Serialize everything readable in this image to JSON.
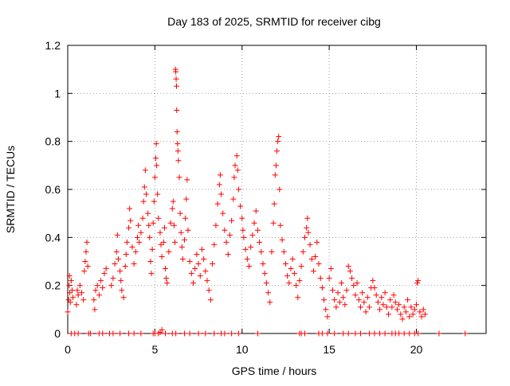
{
  "chart_data": {
    "type": "scatter",
    "title": "Day 183 of 2025, SRMTID for receiver cibg",
    "xlabel": "GPS time / hours",
    "ylabel": "SRMTID / TECUs",
    "xlim": [
      0,
      24
    ],
    "ylim": [
      0,
      1.2
    ],
    "xticks": [
      "0",
      "5",
      "10",
      "15",
      "20"
    ],
    "yticks": [
      "0",
      "0.2",
      "0.4",
      "0.6",
      "0.8",
      "1",
      "1.2"
    ],
    "grid": true,
    "marker": "+",
    "series_color": "#ff0000",
    "series": [
      {
        "name": "SRMTID",
        "points": [
          [
            0.0,
            0.09
          ],
          [
            0.05,
            0.14
          ],
          [
            0.08,
            0.2
          ],
          [
            0.1,
            0.24
          ],
          [
            0.12,
            0.17
          ],
          [
            0.15,
            0.13
          ],
          [
            0.2,
            0.22
          ],
          [
            0.25,
            0.18
          ],
          [
            0.3,
            0.15
          ],
          [
            0.5,
            0.12
          ],
          [
            0.55,
            0.18
          ],
          [
            0.6,
            0.16
          ],
          [
            0.7,
            0.2
          ],
          [
            0.8,
            0.17
          ],
          [
            0.9,
            0.14
          ],
          [
            0.95,
            0.26
          ],
          [
            1.0,
            0.3
          ],
          [
            1.05,
            0.34
          ],
          [
            1.1,
            0.38
          ],
          [
            1.15,
            0.28
          ],
          [
            1.5,
            0.14
          ],
          [
            1.55,
            0.1
          ],
          [
            1.6,
            0.18
          ],
          [
            1.7,
            0.2
          ],
          [
            1.8,
            0.16
          ],
          [
            1.9,
            0.22
          ],
          [
            2.0,
            0.19
          ],
          [
            2.1,
            0.25
          ],
          [
            2.2,
            0.27
          ],
          [
            2.5,
            0.2
          ],
          [
            2.6,
            0.23
          ],
          [
            2.7,
            0.29
          ],
          [
            2.8,
            0.34
          ],
          [
            2.85,
            0.41
          ],
          [
            2.9,
            0.31
          ],
          [
            3.0,
            0.26
          ],
          [
            3.05,
            0.22
          ],
          [
            3.1,
            0.18
          ],
          [
            3.2,
            0.15
          ],
          [
            3.3,
            0.28
          ],
          [
            3.35,
            0.33
          ],
          [
            3.4,
            0.38
          ],
          [
            3.5,
            0.44
          ],
          [
            3.55,
            0.52
          ],
          [
            3.6,
            0.47
          ],
          [
            3.7,
            0.36
          ],
          [
            3.8,
            0.29
          ],
          [
            3.9,
            0.34
          ],
          [
            4.0,
            0.4
          ],
          [
            4.05,
            0.45
          ],
          [
            4.1,
            0.38
          ],
          [
            4.2,
            0.42
          ],
          [
            4.3,
            0.48
          ],
          [
            4.35,
            0.55
          ],
          [
            4.4,
            0.61
          ],
          [
            4.45,
            0.68
          ],
          [
            4.5,
            0.58
          ],
          [
            4.6,
            0.5
          ],
          [
            4.65,
            0.45
          ],
          [
            4.7,
            0.4
          ],
          [
            4.75,
            0.3
          ],
          [
            4.8,
            0.25
          ],
          [
            4.85,
            0.35
          ],
          [
            4.9,
            0.46
          ],
          [
            4.95,
            0.55
          ],
          [
            5.0,
            0.65
          ],
          [
            5.05,
            0.73
          ],
          [
            5.08,
            0.79
          ],
          [
            5.1,
            0.7
          ],
          [
            5.15,
            0.58
          ],
          [
            5.2,
            0.48
          ],
          [
            5.3,
            0.42
          ],
          [
            5.35,
            0.37
          ],
          [
            5.4,
            0.32
          ],
          [
            5.5,
            0.38
          ],
          [
            5.55,
            0.44
          ],
          [
            5.6,
            0.27
          ],
          [
            5.65,
            0.23
          ],
          [
            5.7,
            0.21
          ],
          [
            5.8,
            0.34
          ],
          [
            5.9,
            0.46
          ],
          [
            6.0,
            0.52
          ],
          [
            6.05,
            0.55
          ],
          [
            6.1,
            0.45
          ],
          [
            6.15,
            0.38
          ],
          [
            6.18,
            1.1
          ],
          [
            6.2,
            1.09
          ],
          [
            6.22,
            1.06
          ],
          [
            6.24,
            1.03
          ],
          [
            6.25,
            0.93
          ],
          [
            6.27,
            0.84
          ],
          [
            6.3,
            0.79
          ],
          [
            6.32,
            0.76
          ],
          [
            6.35,
            0.72
          ],
          [
            6.4,
            0.65
          ],
          [
            6.45,
            0.5
          ],
          [
            6.5,
            0.42
          ],
          [
            6.55,
            0.36
          ],
          [
            6.6,
            0.31
          ],
          [
            6.7,
            0.39
          ],
          [
            6.75,
            0.48
          ],
          [
            6.8,
            0.56
          ],
          [
            6.85,
            0.64
          ],
          [
            6.9,
            0.43
          ],
          [
            7.0,
            0.3
          ],
          [
            7.1,
            0.25
          ],
          [
            7.2,
            0.21
          ],
          [
            7.3,
            0.27
          ],
          [
            7.4,
            0.33
          ],
          [
            7.5,
            0.29
          ],
          [
            7.6,
            0.24
          ],
          [
            7.7,
            0.35
          ],
          [
            7.8,
            0.31
          ],
          [
            7.9,
            0.26
          ],
          [
            8.0,
            0.22
          ],
          [
            8.1,
            0.18
          ],
          [
            8.2,
            0.14
          ],
          [
            8.3,
            0.29
          ],
          [
            8.4,
            0.37
          ],
          [
            8.5,
            0.45
          ],
          [
            8.6,
            0.54
          ],
          [
            8.7,
            0.62
          ],
          [
            8.75,
            0.66
          ],
          [
            8.8,
            0.58
          ],
          [
            8.9,
            0.5
          ],
          [
            9.0,
            0.43
          ],
          [
            9.1,
            0.38
          ],
          [
            9.2,
            0.33
          ],
          [
            9.3,
            0.41
          ],
          [
            9.4,
            0.47
          ],
          [
            9.5,
            0.56
          ],
          [
            9.55,
            0.65
          ],
          [
            9.6,
            0.7
          ],
          [
            9.7,
            0.74
          ],
          [
            9.75,
            0.68
          ],
          [
            9.8,
            0.6
          ],
          [
            9.9,
            0.53
          ],
          [
            10.0,
            0.48
          ],
          [
            10.05,
            0.43
          ],
          [
            10.1,
            0.4
          ],
          [
            10.2,
            0.35
          ],
          [
            10.3,
            0.31
          ],
          [
            10.4,
            0.28
          ],
          [
            10.5,
            0.36
          ],
          [
            10.6,
            0.41
          ],
          [
            10.7,
            0.46
          ],
          [
            10.8,
            0.51
          ],
          [
            10.9,
            0.43
          ],
          [
            11.0,
            0.38
          ],
          [
            11.1,
            0.34
          ],
          [
            11.2,
            0.29
          ],
          [
            11.3,
            0.25
          ],
          [
            11.4,
            0.21
          ],
          [
            11.5,
            0.17
          ],
          [
            11.6,
            0.13
          ],
          [
            11.7,
            0.34
          ],
          [
            11.8,
            0.46
          ],
          [
            11.85,
            0.54
          ],
          [
            11.9,
            0.66
          ],
          [
            11.95,
            0.7
          ],
          [
            12.0,
            0.76
          ],
          [
            12.05,
            0.8
          ],
          [
            12.1,
            0.82
          ],
          [
            12.15,
            0.6
          ],
          [
            12.2,
            0.45
          ],
          [
            12.3,
            0.39
          ],
          [
            12.4,
            0.34
          ],
          [
            12.5,
            0.29
          ],
          [
            12.6,
            0.24
          ],
          [
            12.7,
            0.21
          ],
          [
            12.8,
            0.27
          ],
          [
            12.9,
            0.31
          ],
          [
            13.0,
            0.25
          ],
          [
            13.1,
            0.2
          ],
          [
            13.2,
            0.15
          ],
          [
            13.3,
            0.22
          ],
          [
            13.4,
            0.28
          ],
          [
            13.5,
            0.34
          ],
          [
            13.6,
            0.4
          ],
          [
            13.7,
            0.44
          ],
          [
            13.75,
            0.48
          ],
          [
            13.8,
            0.42
          ],
          [
            13.9,
            0.37
          ],
          [
            14.0,
            0.31
          ],
          [
            14.1,
            0.26
          ],
          [
            14.2,
            0.32
          ],
          [
            14.3,
            0.38
          ],
          [
            14.4,
            0.29
          ],
          [
            14.5,
            0.23
          ],
          [
            14.6,
            0.19
          ],
          [
            14.7,
            0.14
          ],
          [
            14.8,
            0.1
          ],
          [
            14.9,
            0.07
          ],
          [
            15.0,
            0.23
          ],
          [
            15.1,
            0.27
          ],
          [
            15.2,
            0.18
          ],
          [
            15.3,
            0.14
          ],
          [
            15.4,
            0.11
          ],
          [
            15.5,
            0.17
          ],
          [
            15.6,
            0.13
          ],
          [
            15.7,
            0.21
          ],
          [
            15.8,
            0.15
          ],
          [
            15.9,
            0.12
          ],
          [
            16.0,
            0.18
          ],
          [
            16.1,
            0.28
          ],
          [
            16.2,
            0.26
          ],
          [
            16.3,
            0.23
          ],
          [
            16.4,
            0.2
          ],
          [
            16.5,
            0.16
          ],
          [
            16.6,
            0.21
          ],
          [
            16.7,
            0.14
          ],
          [
            16.8,
            0.11
          ],
          [
            16.9,
            0.17
          ],
          [
            17.0,
            0.13
          ],
          [
            17.1,
            0.09
          ],
          [
            17.2,
            0.15
          ],
          [
            17.3,
            0.11
          ],
          [
            17.4,
            0.19
          ],
          [
            17.5,
            0.22
          ],
          [
            17.6,
            0.19
          ],
          [
            17.7,
            0.16
          ],
          [
            17.8,
            0.13
          ],
          [
            17.9,
            0.1
          ],
          [
            18.0,
            0.15
          ],
          [
            18.1,
            0.12
          ],
          [
            18.2,
            0.17
          ],
          [
            18.3,
            0.11
          ],
          [
            18.4,
            0.08
          ],
          [
            18.5,
            0.14
          ],
          [
            18.6,
            0.11
          ],
          [
            18.7,
            0.16
          ],
          [
            18.8,
            0.13
          ],
          [
            18.9,
            0.1
          ],
          [
            19.0,
            0.12
          ],
          [
            19.1,
            0.08
          ],
          [
            19.2,
            0.06
          ],
          [
            19.3,
            0.11
          ],
          [
            19.4,
            0.09
          ],
          [
            19.5,
            0.14
          ],
          [
            19.6,
            0.07
          ],
          [
            19.7,
            0.11
          ],
          [
            19.8,
            0.08
          ],
          [
            19.9,
            0.1
          ],
          [
            20.0,
            0.12
          ],
          [
            20.05,
            0.21
          ],
          [
            20.1,
            0.22
          ],
          [
            20.2,
            0.09
          ],
          [
            20.3,
            0.07
          ],
          [
            20.4,
            0.1
          ],
          [
            20.5,
            0.08
          ],
          [
            5.4,
            0.015
          ],
          [
            5.3,
            0.005
          ],
          [
            0.2,
            0.0
          ],
          [
            0.4,
            0.0
          ],
          [
            0.6,
            0.0
          ],
          [
            1.2,
            0.0
          ],
          [
            1.3,
            0.0
          ],
          [
            1.8,
            0.0
          ],
          [
            2.0,
            0.0
          ],
          [
            2.4,
            0.0
          ],
          [
            2.6,
            0.0
          ],
          [
            3.0,
            0.0
          ],
          [
            3.5,
            0.0
          ],
          [
            3.8,
            0.0
          ],
          [
            4.2,
            0.0
          ],
          [
            4.9,
            0.0
          ],
          [
            5.0,
            0.0
          ],
          [
            5.2,
            0.0
          ],
          [
            5.6,
            0.0
          ],
          [
            6.0,
            0.0
          ],
          [
            6.2,
            0.0
          ],
          [
            6.7,
            0.0
          ],
          [
            7.0,
            0.0
          ],
          [
            7.5,
            0.0
          ],
          [
            7.9,
            0.0
          ],
          [
            8.4,
            0.0
          ],
          [
            8.8,
            0.0
          ],
          [
            9.0,
            0.0
          ],
          [
            9.4,
            0.0
          ],
          [
            9.8,
            0.0
          ],
          [
            10.9,
            0.0
          ],
          [
            13.3,
            0.0
          ],
          [
            13.4,
            0.0
          ],
          [
            13.6,
            0.0
          ],
          [
            14.4,
            0.0
          ],
          [
            14.6,
            0.0
          ],
          [
            14.9,
            0.0
          ],
          [
            15.3,
            0.0
          ],
          [
            15.8,
            0.0
          ],
          [
            16.1,
            0.0
          ],
          [
            16.5,
            0.0
          ],
          [
            16.8,
            0.0
          ],
          [
            17.3,
            0.0
          ],
          [
            17.6,
            0.0
          ],
          [
            17.9,
            0.0
          ],
          [
            18.2,
            0.0
          ],
          [
            18.6,
            0.0
          ],
          [
            18.8,
            0.0
          ],
          [
            19.0,
            0.0
          ],
          [
            19.3,
            0.0
          ],
          [
            19.6,
            0.0
          ],
          [
            19.9,
            0.0
          ],
          [
            20.1,
            0.0
          ],
          [
            21.3,
            0.0
          ],
          [
            22.8,
            0.0
          ]
        ]
      }
    ]
  }
}
